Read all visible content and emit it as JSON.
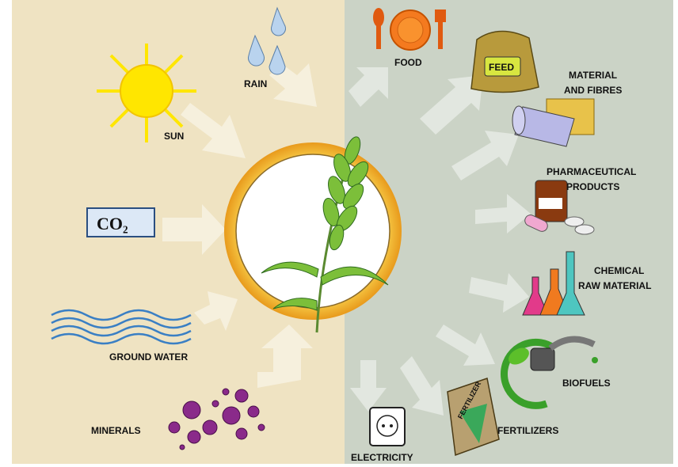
{
  "inputs": [
    {
      "label": [
        "SUN"
      ]
    },
    {
      "label": [
        "RAIN"
      ]
    },
    {
      "label": [
        "CO₂"
      ]
    },
    {
      "label": [
        "GROUND WATER"
      ]
    },
    {
      "label": [
        "MINERALS"
      ]
    }
  ],
  "outputs": [
    {
      "label": [
        "FOOD"
      ]
    },
    {
      "label": [
        "FEED"
      ]
    },
    {
      "label": [
        "MATERIAL",
        "AND FIBRES"
      ]
    },
    {
      "label": [
        "PHARMACEUTICAL",
        "PRODUCTS"
      ]
    },
    {
      "label": [
        "CHEMICAL",
        "RAW MATERIAL"
      ]
    },
    {
      "label": [
        "BIOFUELS"
      ]
    },
    {
      "label": [
        "FERTILIZERS"
      ]
    },
    {
      "label": [
        "ELECTRICITY"
      ]
    }
  ],
  "bag_text": "FERTILIZER"
}
